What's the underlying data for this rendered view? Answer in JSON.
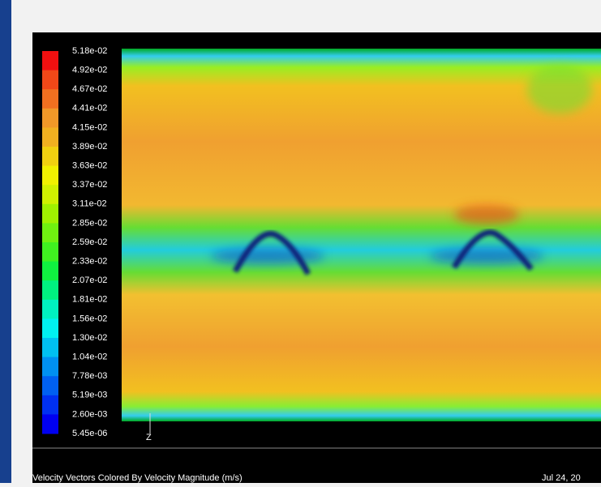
{
  "legend": {
    "labels": [
      "5.18e-02",
      "4.92e-02",
      "4.67e-02",
      "4.41e-02",
      "4.15e-02",
      "3.89e-02",
      "3.63e-02",
      "3.37e-02",
      "3.11e-02",
      "2.85e-02",
      "2.59e-02",
      "2.33e-02",
      "2.07e-02",
      "1.81e-02",
      "1.56e-02",
      "1.30e-02",
      "1.04e-02",
      "7.78e-03",
      "5.19e-03",
      "2.60e-03",
      "5.45e-06"
    ]
  },
  "axis": {
    "label": "Z"
  },
  "footer": {
    "caption": "Velocity Vectors Colored By Velocity Magnitude (m/s)",
    "date": "Jul 24, 20"
  }
}
